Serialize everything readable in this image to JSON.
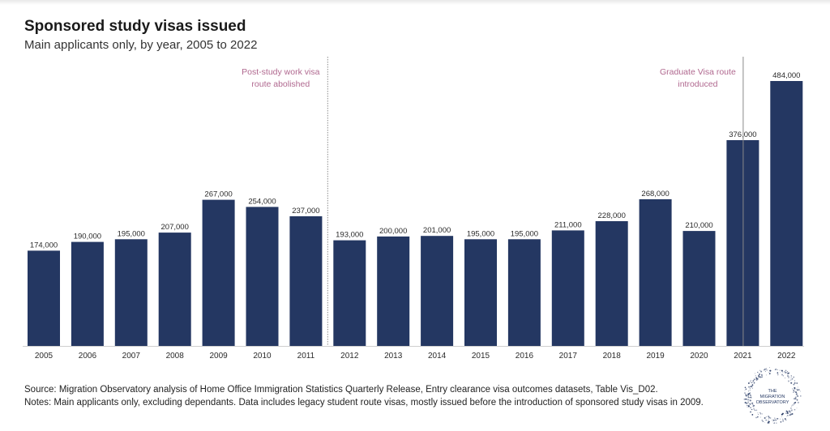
{
  "header": {
    "title": "Sponsored study visas issued",
    "subtitle": "Main applicants only, by year, 2005 to 2022"
  },
  "chart_data": {
    "type": "bar",
    "title": "Sponsored study visas issued",
    "subtitle": "Main applicants only, by year, 2005 to 2022",
    "xlabel": "",
    "ylabel": "",
    "ylim": [
      0,
      500000
    ],
    "grid": false,
    "categories": [
      "2005",
      "2006",
      "2007",
      "2008",
      "2009",
      "2010",
      "2011",
      "2012",
      "2013",
      "2014",
      "2015",
      "2016",
      "2017",
      "2018",
      "2019",
      "2020",
      "2021",
      "2022"
    ],
    "values": [
      174000,
      190000,
      195000,
      207000,
      267000,
      254000,
      237000,
      193000,
      200000,
      201000,
      195000,
      195000,
      211000,
      228000,
      268000,
      210000,
      376000,
      484000
    ],
    "value_labels": [
      "174,000",
      "190,000",
      "195,000",
      "207,000",
      "267,000",
      "254,000",
      "237,000",
      "193,000",
      "200,000",
      "201,000",
      "195,000",
      "195,000",
      "211,000",
      "228,000",
      "268,000",
      "210,000",
      "376,000",
      "484,000"
    ],
    "bar_color": "#243762",
    "annotations": [
      {
        "after_category": "2011",
        "lines": [
          "Post-study work visa",
          "route abolished"
        ],
        "color": "#b0688f"
      },
      {
        "at_category": "2021",
        "lines": [
          "Graduate Visa route",
          "introduced"
        ],
        "color": "#b0688f"
      }
    ]
  },
  "footer": {
    "source": "Source: Migration Observatory analysis of Home Office Immigration Statistics Quarterly Release, Entry clearance visa outcomes datasets, Table Vis_D02.",
    "notes": "Notes: Main applicants only, excluding dependants. Data includes legacy student route visas, mostly issued before the introduction of sponsored study visas in 2009."
  },
  "logo": {
    "lines": [
      "THE",
      "MIGRATION",
      "OBSERVATORY"
    ],
    "color": "#243762"
  }
}
